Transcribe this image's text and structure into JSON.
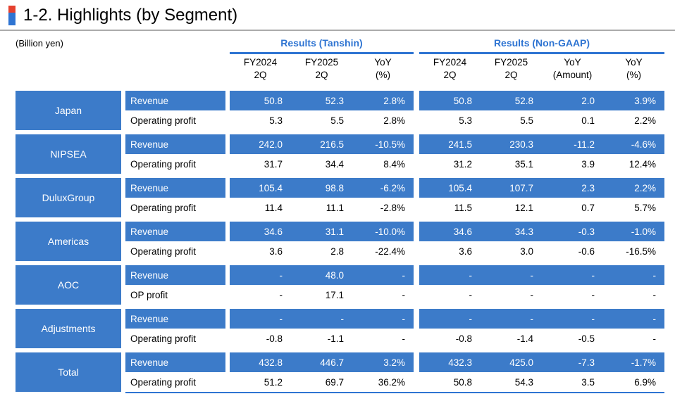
{
  "title": "1-2. Highlights (by Segment)",
  "unit_label": "(Billion yen)",
  "colors": {
    "accent": "#2E74D2",
    "cellblue": "#3C7BC9",
    "red": "#E5402E",
    "rule": "#ABABAB"
  },
  "column_groups": [
    {
      "label": "Results (Tanshin)",
      "columns": [
        [
          "FY2024",
          "2Q"
        ],
        [
          "FY2025",
          "2Q"
        ],
        [
          "YoY",
          "(%)"
        ]
      ]
    },
    {
      "label": "Results (Non-GAAP)",
      "columns": [
        [
          "FY2024",
          "2Q"
        ],
        [
          "FY2025",
          "2Q"
        ],
        [
          "YoY",
          "(Amount)"
        ],
        [
          "YoY",
          "(%)"
        ]
      ]
    }
  ],
  "segments": [
    {
      "name": "Japan",
      "rows": [
        {
          "label": "Revenue",
          "tanshin": [
            "50.8",
            "52.3",
            "2.8%"
          ],
          "nongaap": [
            "50.8",
            "52.8",
            "2.0",
            "3.9%"
          ]
        },
        {
          "label": "Operating profit",
          "tanshin": [
            "5.3",
            "5.5",
            "2.8%"
          ],
          "nongaap": [
            "5.3",
            "5.5",
            "0.1",
            "2.2%"
          ]
        }
      ]
    },
    {
      "name": "NIPSEA",
      "rows": [
        {
          "label": "Revenue",
          "tanshin": [
            "242.0",
            "216.5",
            "-10.5%"
          ],
          "nongaap": [
            "241.5",
            "230.3",
            "-11.2",
            "-4.6%"
          ]
        },
        {
          "label": "Operating profit",
          "tanshin": [
            "31.7",
            "34.4",
            "8.4%"
          ],
          "nongaap": [
            "31.2",
            "35.1",
            "3.9",
            "12.4%"
          ]
        }
      ]
    },
    {
      "name": "DuluxGroup",
      "rows": [
        {
          "label": "Revenue",
          "tanshin": [
            "105.4",
            "98.8",
            "-6.2%"
          ],
          "nongaap": [
            "105.4",
            "107.7",
            "2.3",
            "2.2%"
          ]
        },
        {
          "label": "Operating profit",
          "tanshin": [
            "11.4",
            "11.1",
            "-2.8%"
          ],
          "nongaap": [
            "11.5",
            "12.1",
            "0.7",
            "5.7%"
          ]
        }
      ]
    },
    {
      "name": "Americas",
      "rows": [
        {
          "label": "Revenue",
          "tanshin": [
            "34.6",
            "31.1",
            "-10.0%"
          ],
          "nongaap": [
            "34.6",
            "34.3",
            "-0.3",
            "-1.0%"
          ]
        },
        {
          "label": "Operating profit",
          "tanshin": [
            "3.6",
            "2.8",
            "-22.4%"
          ],
          "nongaap": [
            "3.6",
            "3.0",
            "-0.6",
            "-16.5%"
          ]
        }
      ]
    },
    {
      "name": "AOC",
      "rows": [
        {
          "label": "Revenue",
          "tanshin": [
            "-",
            "48.0",
            "-"
          ],
          "nongaap": [
            "-",
            "-",
            "-",
            "-"
          ]
        },
        {
          "label": "OP profit",
          "tanshin": [
            "-",
            "17.1",
            "-"
          ],
          "nongaap": [
            "-",
            "-",
            "-",
            "-"
          ]
        }
      ]
    },
    {
      "name": "Adjustments",
      "rows": [
        {
          "label": "Revenue",
          "tanshin": [
            "-",
            "-",
            "-"
          ],
          "nongaap": [
            "-",
            "-",
            "-",
            "-"
          ]
        },
        {
          "label": "Operating profit",
          "tanshin": [
            "-0.8",
            "-1.1",
            "-"
          ],
          "nongaap": [
            "-0.8",
            "-1.4",
            "-0.5",
            "-"
          ]
        }
      ]
    },
    {
      "name": "Total",
      "rows": [
        {
          "label": "Revenue",
          "tanshin": [
            "432.8",
            "446.7",
            "3.2%"
          ],
          "nongaap": [
            "432.3",
            "425.0",
            "-7.3",
            "-1.7%"
          ]
        },
        {
          "label": "Operating profit",
          "tanshin": [
            "51.2",
            "69.7",
            "36.2%"
          ],
          "nongaap": [
            "50.8",
            "54.3",
            "3.5",
            "6.9%"
          ]
        }
      ]
    }
  ]
}
